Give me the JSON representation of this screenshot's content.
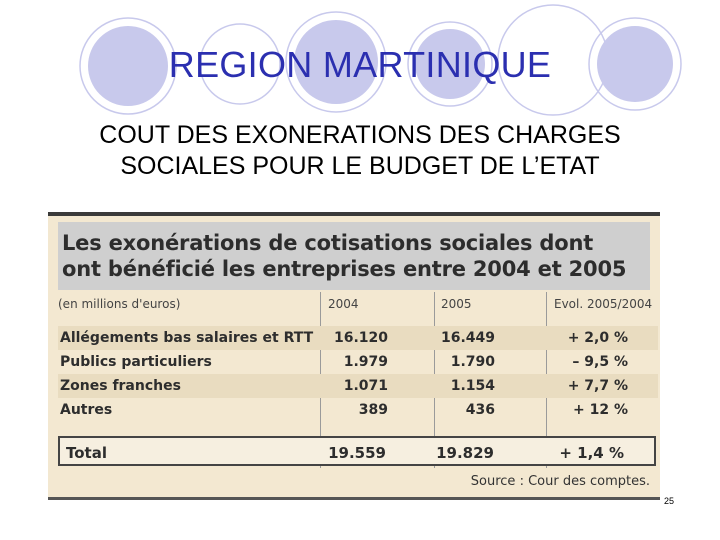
{
  "slide": {
    "title": "REGION MARTINIQUE",
    "subtitle_line1": "COUT DES EXONERATIONS DES CHARGES",
    "subtitle_line2": "SOCIALES POUR LE BUDGET DE L’ETAT",
    "page_number": "25",
    "accent_color": "#2b2fb0",
    "circle_color": "#c8c9ec"
  },
  "figure": {
    "heading_line1": "Les exonérations de cotisations sociales dont",
    "heading_line2": "ont bénéficié les entreprises entre 2004 et 2005",
    "unit_label": "(en millions d'euros)",
    "columns": [
      "2004",
      "2005",
      "Evol. 2005/2004"
    ],
    "rows": [
      {
        "label": "Allégements bas salaires et RTT",
        "v2004": "16.120",
        "v2005": "16.449",
        "evol": "+ 2,0 %"
      },
      {
        "label": "Publics particuliers",
        "v2004": "1.979",
        "v2005": "1.790",
        "evol": "– 9,5 %"
      },
      {
        "label": "Zones franches",
        "v2004": "1.071",
        "v2005": "1.154",
        "evol": "+ 7,7 %"
      },
      {
        "label": "Autres",
        "v2004": "389",
        "v2005": "436",
        "evol": "+ 12 %"
      }
    ],
    "total": {
      "label": "Total",
      "v2004": "19.559",
      "v2005": "19.829",
      "evol": "+ 1,4 %"
    },
    "source": "Source : Cour des comptes."
  }
}
